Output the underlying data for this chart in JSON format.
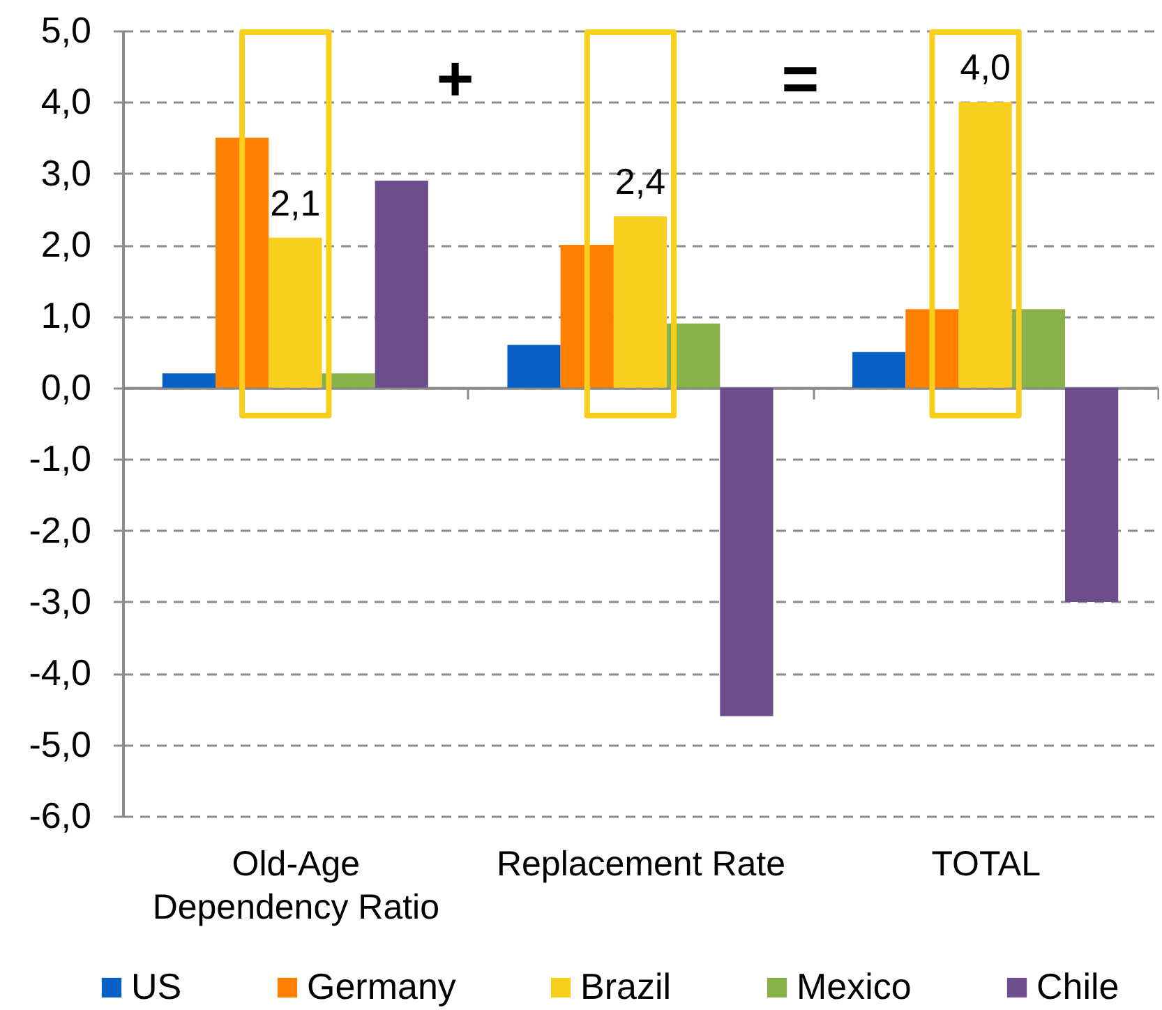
{
  "chart_data": {
    "type": "bar",
    "categories": [
      "Old-Age Dependency Ratio",
      "Replacement Rate",
      "TOTAL"
    ],
    "series": [
      {
        "name": "US",
        "color": "#0660c6",
        "values": [
          0.2,
          0.6,
          0.5
        ]
      },
      {
        "name": "Germany",
        "color": "#ff7f00",
        "values": [
          3.5,
          2.0,
          1.1
        ]
      },
      {
        "name": "Brazil",
        "color": "#f7cf1c",
        "values": [
          2.1,
          2.4,
          4.0
        ],
        "value_labels": [
          "2,1",
          "2,4",
          "4,0"
        ]
      },
      {
        "name": "Mexico",
        "color": "#88b04b",
        "values": [
          0.2,
          0.9,
          1.1
        ]
      },
      {
        "name": "Chile",
        "color": "#6d4e8c",
        "values": [
          2.9,
          -4.6,
          -3.0
        ]
      }
    ],
    "ylim": [
      -6,
      5
    ],
    "yticks": [
      {
        "value": -6,
        "label": "-6,0"
      },
      {
        "value": -5,
        "label": "-5,0"
      },
      {
        "value": -4,
        "label": "-4,0"
      },
      {
        "value": -3,
        "label": "-3,0"
      },
      {
        "value": -2,
        "label": "-2,0"
      },
      {
        "value": -1,
        "label": "-1,0"
      },
      {
        "value": 0,
        "label": "0,0"
      },
      {
        "value": 1,
        "label": "1,0"
      },
      {
        "value": 2,
        "label": "2,0"
      },
      {
        "value": 3,
        "label": "3,0"
      },
      {
        "value": 4,
        "label": "4,0"
      },
      {
        "value": 5,
        "label": "5,0"
      }
    ],
    "grid": "y",
    "legend": "bottom",
    "annotations": [
      "+",
      "="
    ]
  }
}
